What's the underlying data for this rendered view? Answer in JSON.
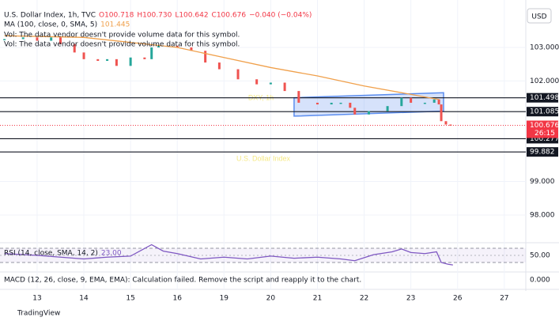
{
  "chart_data": [
    {
      "type": "line",
      "header": {
        "title": "U.S. Dollar Index, 1h, TVC",
        "open": "O100.718",
        "high": "H100.730",
        "low": "L100.642",
        "close": "C100.676",
        "change": "−0.040 (−0.04%)"
      },
      "ma_value": "101.445",
      "notes": [
        "Vol: The data vendor doesn't provide volume data for this symbol.",
        "Vol: The data vendor doesn't provide volume data for this symbol."
      ],
      "currency": "USD",
      "watermark": [
        "DXY, 1h",
        "U.S. Dollar Index"
      ],
      "xlim": [
        -0.71,
        10.46
      ],
      "xticks": [
        {
          "value": 0,
          "label": "13"
        },
        {
          "value": 1,
          "label": "14"
        },
        {
          "value": 2,
          "label": "15"
        },
        {
          "value": 3,
          "label": "16"
        },
        {
          "value": 4,
          "label": "19"
        },
        {
          "value": 5,
          "label": "20"
        },
        {
          "value": 6,
          "label": "21"
        },
        {
          "value": 7,
          "label": "22"
        },
        {
          "value": 8,
          "label": "23"
        },
        {
          "value": 9,
          "label": "26"
        },
        {
          "value": 10,
          "label": "27"
        }
      ],
      "ylim": [
        97.22,
        104.18
      ],
      "yticks": [
        {
          "value": 103,
          "label": "103.000"
        },
        {
          "value": 102,
          "label": "102.000"
        },
        {
          "value": 99,
          "label": "99.000"
        },
        {
          "value": 98,
          "label": "98.000"
        }
      ],
      "series": [
        {
          "style": "candles",
          "up_color": "#26a69a",
          "down_color": "#ef5350",
          "x": [
            -0.7,
            -0.3,
            0,
            0.3,
            0.5,
            0.8,
            1,
            1.3,
            1.5,
            1.7,
            2,
            2.3,
            2.45,
            2.6,
            3,
            3.3,
            3.6,
            3.9,
            4.3,
            4.7,
            5,
            5.3,
            5.6,
            6,
            6.3,
            6.5,
            6.7,
            6.8,
            7.1,
            7.5,
            7.8,
            8,
            8.3,
            8.5,
            8.6,
            8.65,
            8.75,
            8.85
          ],
          "values": [
            103.25,
            103.3,
            103.2,
            103.3,
            103.1,
            102.85,
            102.65,
            102.6,
            102.65,
            102.45,
            102.7,
            102.65,
            103.0,
            103.05,
            103.0,
            102.9,
            102.55,
            102.35,
            102.05,
            101.9,
            101.95,
            101.7,
            101.35,
            101.3,
            101.35,
            101.35,
            101.2,
            101.0,
            101.1,
            101.25,
            101.5,
            101.35,
            101.35,
            101.45,
            101.3,
            100.8,
            100.7,
            100.676
          ]
        },
        {
          "name": "MA (100, close, 0, SMA, 5)",
          "color": "#f0a04b",
          "x": [
            -0.7,
            1,
            2,
            3,
            4,
            5,
            6,
            7,
            8,
            8.6
          ],
          "values": [
            103.35,
            103.3,
            103.15,
            103.0,
            102.7,
            102.4,
            102.15,
            101.85,
            101.6,
            101.445
          ]
        }
      ],
      "levels": [
        101.498,
        101.085,
        100.277,
        99.882
      ],
      "channel": {
        "x": [
          5.5,
          8.7
        ],
        "upper": [
          101.5,
          101.65
        ],
        "lower": [
          100.95,
          101.1
        ],
        "color": "#5b8def"
      },
      "last_price": 100.676,
      "countdown": "26:15"
    },
    {
      "type": "line",
      "title": "RSI (14, close, SMA, 14, 2)",
      "value_label": "23.00",
      "ylim": [
        5.6,
        83.3
      ],
      "yticks": [
        {
          "value": 50,
          "label": "50.00"
        }
      ],
      "bands": [
        70,
        30
      ],
      "series": [
        {
          "color": "#7e57c2",
          "x": [
            -0.7,
            0,
            0.5,
            1,
            1.5,
            2,
            2.45,
            2.7,
            3,
            3.5,
            4,
            4.5,
            5,
            5.5,
            6,
            6.5,
            6.8,
            7.2,
            7.6,
            7.8,
            8,
            8.3,
            8.55,
            8.65,
            8.8,
            8.9
          ],
          "values": [
            55,
            50,
            45,
            40,
            45,
            48,
            80,
            62,
            55,
            40,
            45,
            40,
            48,
            42,
            45,
            40,
            35,
            52,
            60,
            68,
            58,
            55,
            60,
            30,
            25,
            23
          ]
        }
      ]
    },
    {
      "type": "message",
      "title": "MACD (12, 26, close, 9, EMA, EMA): Calculation failed. Remove the script and reapply it to the chart.",
      "ylim": [
        -1,
        1
      ],
      "yticks": [
        {
          "value": 0,
          "label": "0.000"
        }
      ]
    }
  ],
  "footer": "TradingView"
}
